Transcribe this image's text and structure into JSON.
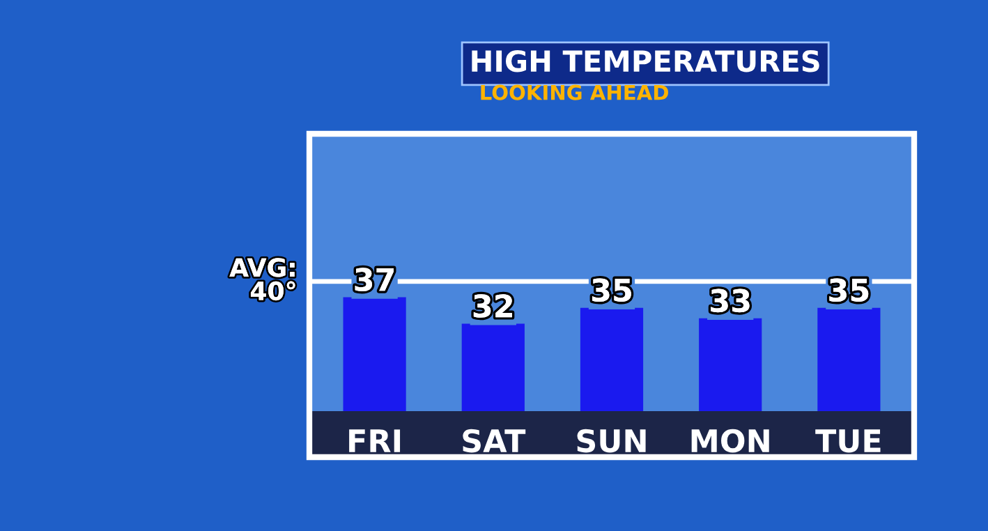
{
  "chart_data": {
    "type": "bar",
    "title": "HIGH TEMPERATURES",
    "subtitle": "LOOKING AHEAD",
    "categories": [
      "FRI",
      "SAT",
      "SUN",
      "MON",
      "TUE"
    ],
    "values": [
      37,
      32,
      35,
      33,
      35
    ],
    "color": "#1a1aef",
    "ylim": [
      15.4,
      68
    ],
    "tick_labels": "x",
    "data_labels": true,
    "grid": false,
    "legend": false,
    "ref_lines": [
      {
        "axis": "y",
        "value": 40,
        "label": "AVG:\n40°",
        "color": "#ffffff"
      }
    ]
  }
}
